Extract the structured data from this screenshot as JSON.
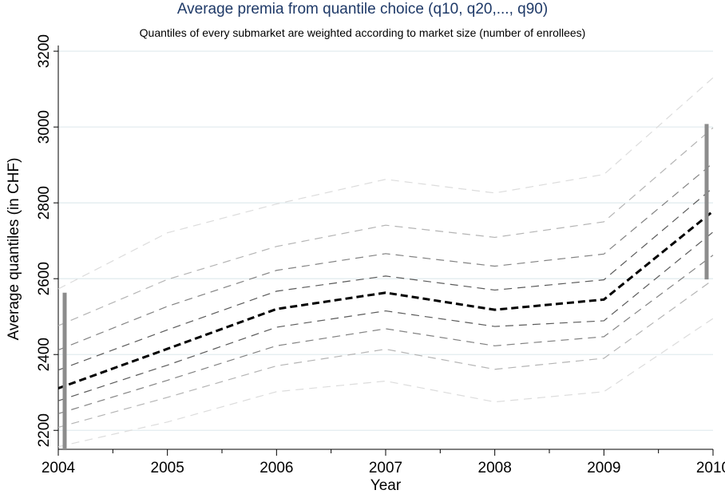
{
  "chart_data": {
    "type": "line",
    "title": "Average premia from quantile choice (q10, q20,..., q90)",
    "subtitle": "Quantiles of every submarket are weighted according to market size (number of enrollees)",
    "xlabel": "Year",
    "ylabel": "Average quantiles (in CHF)",
    "x": [
      2004,
      2005,
      2006,
      2007,
      2008,
      2009,
      2010
    ],
    "xlim": [
      2004,
      2010
    ],
    "ylim": [
      2150,
      3215
    ],
    "yticks": [
      2200,
      2400,
      2600,
      2800,
      3000,
      3200
    ],
    "grid": true,
    "series": [
      {
        "values": [
          2157,
          2222,
          2302,
          2330,
          2275,
          2302,
          2495
        ],
        "color": "#dcdcdc",
        "width": 1.2,
        "dash": "10,7"
      },
      {
        "values": [
          2208,
          2287,
          2370,
          2414,
          2361,
          2390,
          2597
        ],
        "color": "#b4b4b4",
        "width": 1.2,
        "dash": "10,7"
      },
      {
        "values": [
          2244,
          2332,
          2423,
          2468,
          2423,
          2447,
          2662
        ],
        "color": "#828282",
        "width": 1.2,
        "dash": "10,7"
      },
      {
        "values": [
          2278,
          2372,
          2472,
          2515,
          2474,
          2489,
          2723
        ],
        "color": "#5a5a5a",
        "width": 1.2,
        "dash": "10,7"
      },
      {
        "values": [
          2311,
          2415,
          2520,
          2563,
          2518,
          2545,
          2778
        ],
        "color": "#000000",
        "width": 3,
        "dash": "9,5"
      },
      {
        "values": [
          2359,
          2465,
          2567,
          2607,
          2570,
          2597,
          2840
        ],
        "color": "#5a5a5a",
        "width": 1.2,
        "dash": "10,7"
      },
      {
        "values": [
          2412,
          2527,
          2622,
          2666,
          2633,
          2665,
          2905
        ],
        "color": "#828282",
        "width": 1.2,
        "dash": "10,7"
      },
      {
        "values": [
          2476,
          2598,
          2685,
          2741,
          2709,
          2750,
          2998
        ],
        "color": "#b4b4b4",
        "width": 1.2,
        "dash": "10,7"
      },
      {
        "values": [
          2573,
          2721,
          2797,
          2862,
          2826,
          2875,
          3130
        ],
        "color": "#dcdcdc",
        "width": 1.2,
        "dash": "10,7"
      }
    ],
    "range_bars": [
      {
        "x": 2004,
        "from": 2150,
        "to": 2563,
        "color": "#8c8c8c"
      },
      {
        "x": 2010,
        "from": 2598,
        "to": 3008,
        "color": "#8c8c8c"
      }
    ]
  }
}
